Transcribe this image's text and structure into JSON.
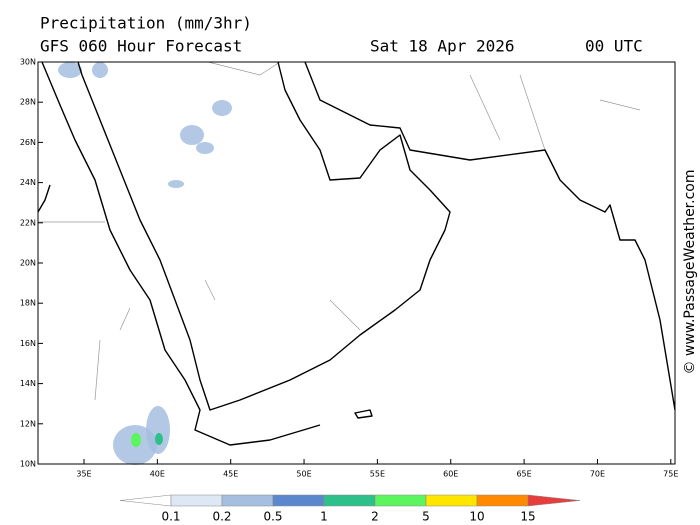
{
  "header": {
    "title": "Precipitation (mm/3hr)",
    "subtitle": "GFS 060 Hour Forecast",
    "date": "Sat 18 Apr 2026",
    "time": "00 UTC"
  },
  "watermark": "© www.PassageWeather.com",
  "lat_ticks": [
    {
      "value": 30,
      "label": "30N"
    },
    {
      "value": 28,
      "label": "28N"
    },
    {
      "value": 26,
      "label": "26N"
    },
    {
      "value": 24,
      "label": "24N"
    },
    {
      "value": 22,
      "label": "22N"
    },
    {
      "value": 20,
      "label": "20N"
    },
    {
      "value": 18,
      "label": "18N"
    },
    {
      "value": 16,
      "label": "16N"
    },
    {
      "value": 14,
      "label": "14N"
    },
    {
      "value": 12,
      "label": "12N"
    },
    {
      "value": 10,
      "label": "10N"
    }
  ],
  "lon_ticks": [
    {
      "value": 35,
      "label": "35E"
    },
    {
      "value": 40,
      "label": "40E"
    },
    {
      "value": 45,
      "label": "45E"
    },
    {
      "value": 50,
      "label": "50E"
    },
    {
      "value": 55,
      "label": "55E"
    },
    {
      "value": 60,
      "label": "60E"
    },
    {
      "value": 65,
      "label": "65E"
    },
    {
      "value": 70,
      "label": "70E"
    },
    {
      "value": 75,
      "label": "75E"
    }
  ],
  "colorbar": {
    "levels": [
      0.1,
      0.2,
      0.5,
      1,
      2,
      5,
      10,
      15
    ],
    "colors": [
      "#ffffff",
      "#dde8f4",
      "#a6bedf",
      "#5b87cf",
      "#2ec08a",
      "#5df55d",
      "#ffe600",
      "#ff8a00",
      "#e83d3d"
    ]
  }
}
